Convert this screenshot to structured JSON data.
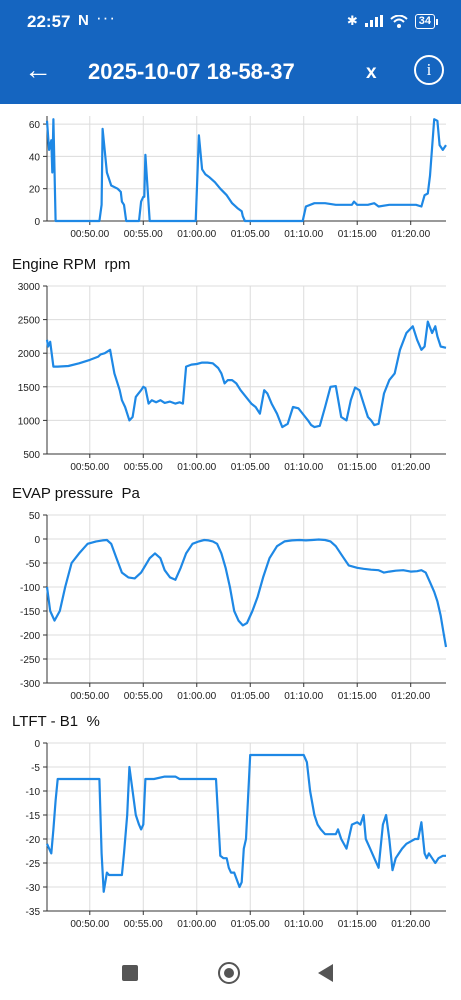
{
  "status_bar": {
    "time": "22:57",
    "notif": "N",
    "dots": "···",
    "battery": "34"
  },
  "app_bar": {
    "back_icon": "arrow-left-icon",
    "title": "2025-10-07 18-58-37",
    "close_label": "x",
    "info_label": "i"
  },
  "x_tick_labels": [
    "00:50.00",
    "00:55.00",
    "01:00.00",
    "01:05.00",
    "01:10.00",
    "01:15.00",
    "01:20.00"
  ],
  "colors": {
    "accent": "#1565c0",
    "line": "#1e88e5"
  },
  "chart_data": [
    {
      "type": "line",
      "title": "",
      "xlabel": "",
      "ylabel": "",
      "xlim": [
        "00:46.00",
        "01:23.30"
      ],
      "ylim": [
        0,
        65
      ],
      "yticks": [
        0,
        20,
        40,
        60
      ],
      "series": [
        {
          "x": [
            "00:46.00",
            "00:46.20",
            "00:46.40",
            "00:46.50",
            "00:46.60",
            "00:46.80",
            "00:47.00",
            "00:50.90",
            "00:51.10",
            "00:51.20",
            "00:51.60",
            "00:52.00",
            "00:52.60",
            "00:52.90",
            "00:53.00",
            "00:53.20",
            "00:53.40",
            "00:54.00",
            "00:54.60",
            "00:54.80",
            "00:55.00",
            "00:55.10",
            "00:55.20",
            "00:55.60",
            "00:59.80",
            "00:59.90",
            "01:00.20",
            "01:00.50",
            "01:00.80",
            "01:01.20",
            "01:01.70",
            "01:02.20",
            "01:02.80",
            "01:03.30",
            "01:03.80",
            "01:04.20",
            "01:04.30",
            "01:04.50",
            "01:09.70",
            "01:09.90",
            "01:10.20",
            "01:11.00",
            "01:12.00",
            "01:13.00",
            "01:14.00",
            "01:14.50",
            "01:14.70",
            "01:15.00",
            "01:16.00",
            "01:16.60",
            "01:17.00",
            "01:18.00",
            "01:19.00",
            "01:20.00",
            "01:20.50",
            "01:21.00",
            "01:21.30",
            "01:21.60",
            "01:21.80",
            "01:22.20",
            "01:22.50",
            "01:22.70",
            "01:23.00",
            "01:23.30"
          ],
          "values": [
            62,
            44,
            50,
            30,
            63,
            0,
            0,
            0,
            10,
            57,
            30,
            22,
            20,
            18,
            12,
            10,
            0,
            0,
            0,
            12,
            15,
            15,
            41,
            0,
            0,
            0,
            53,
            32,
            29,
            27,
            24,
            20,
            16,
            11,
            8,
            6,
            3,
            0,
            0,
            0,
            9,
            11,
            11,
            10,
            10,
            10,
            12,
            10,
            10,
            11,
            9,
            10,
            10,
            10,
            10,
            9,
            16,
            17,
            28,
            63,
            62,
            47,
            44,
            47
          ]
        }
      ]
    },
    {
      "type": "line",
      "title": "Engine RPM  rpm",
      "xlabel": "",
      "ylabel": "rpm",
      "xlim": [
        "00:46.00",
        "01:23.30"
      ],
      "ylim": [
        500,
        3000
      ],
      "yticks": [
        500,
        1000,
        1500,
        2000,
        2500,
        3000
      ],
      "series": [
        {
          "x": [
            "00:46.00",
            "00:46.10",
            "00:46.30",
            "00:46.60",
            "00:47.00",
            "00:48.00",
            "00:49.00",
            "00:50.00",
            "00:50.80",
            "00:51.00",
            "00:51.40",
            "00:51.90",
            "00:52.30",
            "00:52.80",
            "00:53.00",
            "00:53.30",
            "00:53.70",
            "00:54.00",
            "00:54.30",
            "00:54.50",
            "00:54.80",
            "00:55.00",
            "00:55.20",
            "00:55.50",
            "00:55.80",
            "00:56.20",
            "00:56.60",
            "00:57.00",
            "00:57.50",
            "00:58.00",
            "00:58.40",
            "00:58.70",
            "00:59.00",
            "00:59.50",
            "01:00.00",
            "01:00.50",
            "01:01.00",
            "01:01.50",
            "01:02.00",
            "01:02.30",
            "01:02.60",
            "01:02.90",
            "01:03.30",
            "01:03.70",
            "01:04.10",
            "01:04.60",
            "01:05.10",
            "01:05.50",
            "01:05.90",
            "01:06.30",
            "01:06.60",
            "01:07.00",
            "01:07.50",
            "01:08.00",
            "01:08.50",
            "01:09.00",
            "01:09.50",
            "01:10.00",
            "01:10.40",
            "01:10.70",
            "01:11.00",
            "01:11.50",
            "01:12.00",
            "01:12.50",
            "01:13.00",
            "01:13.50",
            "01:14.00",
            "01:14.40",
            "01:14.80",
            "01:15.20",
            "01:15.60",
            "01:16.00",
            "01:16.30",
            "01:16.60",
            "01:17.00",
            "01:17.50",
            "01:18.00",
            "01:18.50",
            "01:19.00",
            "01:19.60",
            "01:20.20",
            "01:20.60",
            "01:21.00",
            "01:21.30",
            "01:21.60",
            "01:22.00",
            "01:22.30",
            "01:22.50",
            "01:22.80",
            "01:23.30"
          ],
          "values": [
            2200,
            2100,
            2170,
            1800,
            1800,
            1810,
            1850,
            1900,
            1950,
            1980,
            2000,
            2050,
            1700,
            1450,
            1300,
            1200,
            1000,
            1050,
            1350,
            1390,
            1450,
            1500,
            1480,
            1250,
            1300,
            1270,
            1300,
            1260,
            1280,
            1250,
            1270,
            1250,
            1800,
            1830,
            1840,
            1860,
            1860,
            1850,
            1780,
            1700,
            1550,
            1600,
            1600,
            1550,
            1450,
            1350,
            1250,
            1200,
            1100,
            1450,
            1400,
            1250,
            1100,
            900,
            950,
            1200,
            1180,
            1080,
            1000,
            930,
            900,
            920,
            1200,
            1500,
            1510,
            1050,
            1000,
            1300,
            1490,
            1450,
            1250,
            1050,
            1000,
            930,
            950,
            1400,
            1600,
            1700,
            2050,
            2300,
            2400,
            2200,
            2050,
            2100,
            2470,
            2300,
            2400,
            2250,
            2100,
            2080
          ]
        }
      ]
    },
    {
      "type": "line",
      "title": "EVAP pressure  Pa",
      "xlabel": "",
      "ylabel": "Pa",
      "xlim": [
        "00:46.00",
        "01:23.30"
      ],
      "ylim": [
        -300,
        50
      ],
      "yticks": [
        -300,
        -250,
        -200,
        -150,
        -100,
        -50,
        0,
        50
      ],
      "series": [
        {
          "x": [
            "00:46.00",
            "00:46.30",
            "00:46.70",
            "00:47.20",
            "00:47.70",
            "00:48.30",
            "00:49.00",
            "00:49.80",
            "00:50.60",
            "00:51.20",
            "00:51.60",
            "00:52.00",
            "00:52.50",
            "00:53.00",
            "00:53.60",
            "00:54.20",
            "00:54.80",
            "00:55.20",
            "00:55.60",
            "00:56.10",
            "00:56.60",
            "00:57.00",
            "00:57.50",
            "00:58.00",
            "00:58.50",
            "00:59.00",
            "00:59.60",
            "01:00.20",
            "01:00.70",
            "01:01.10",
            "01:01.50",
            "01:01.90",
            "01:02.30",
            "01:02.70",
            "01:03.10",
            "01:03.50",
            "01:03.90",
            "01:04.30",
            "01:04.70",
            "01:05.20",
            "01:05.70",
            "01:06.20",
            "01:06.80",
            "01:07.50",
            "01:08.20",
            "01:08.90",
            "01:09.60",
            "01:10.20",
            "01:10.80",
            "01:11.40",
            "01:12.00",
            "01:12.50",
            "01:13.00",
            "01:13.60",
            "01:14.20",
            "01:15.00",
            "01:15.60",
            "01:16.30",
            "01:17.00",
            "01:17.50",
            "01:18.00",
            "01:18.60",
            "01:19.30",
            "01:20.00",
            "01:20.60",
            "01:21.00",
            "01:21.40",
            "01:21.80",
            "01:22.20",
            "01:22.50",
            "01:22.80",
            "01:23.10",
            "01:23.30"
          ],
          "values": [
            -100,
            -150,
            -170,
            -150,
            -100,
            -50,
            -30,
            -10,
            -5,
            -3,
            -2,
            -10,
            -40,
            -70,
            -80,
            -82,
            -70,
            -55,
            -40,
            -30,
            -40,
            -65,
            -80,
            -85,
            -60,
            -30,
            -10,
            -5,
            -2,
            -3,
            -5,
            -10,
            -30,
            -60,
            -100,
            -150,
            -170,
            -180,
            -175,
            -150,
            -120,
            -80,
            -40,
            -15,
            -5,
            -3,
            -2,
            -3,
            -2,
            -1,
            -2,
            -5,
            -15,
            -35,
            -55,
            -60,
            -62,
            -64,
            -65,
            -70,
            -68,
            -66,
            -65,
            -68,
            -67,
            -65,
            -70,
            -90,
            -110,
            -130,
            -160,
            -200,
            -225
          ]
        }
      ]
    },
    {
      "type": "line",
      "title": "LTFT - B1  %",
      "xlabel": "",
      "ylabel": "%",
      "xlim": [
        "00:46.00",
        "01:23.30"
      ],
      "ylim": [
        -35,
        0
      ],
      "yticks": [
        -35,
        -30,
        -25,
        -20,
        -15,
        -10,
        -5,
        0
      ],
      "series": [
        {
          "x": [
            "00:46.00",
            "00:46.20",
            "00:46.40",
            "00:46.60",
            "00:46.80",
            "00:47.00",
            "00:47.30",
            "00:48.00",
            "00:49.00",
            "00:50.00",
            "00:50.90",
            "00:51.10",
            "00:51.30",
            "00:51.60",
            "00:51.80",
            "00:52.00",
            "00:53.00",
            "00:53.20",
            "00:53.50",
            "00:53.70",
            "00:54.00",
            "00:54.30",
            "00:54.60",
            "00:54.80",
            "00:55.00",
            "00:55.20",
            "00:55.60",
            "00:56.00",
            "00:57.00",
            "00:58.00",
            "00:58.40",
            "00:58.60",
            "00:59.00",
            "00:59.40",
            "00:59.80",
            "01:00.20",
            "01:00.60",
            "01:01.00",
            "01:01.40",
            "01:01.80",
            "01:02.20",
            "01:02.50",
            "01:02.80",
            "01:03.00",
            "01:03.20",
            "01:03.50",
            "01:04.00",
            "01:04.20",
            "01:04.40",
            "01:04.60",
            "01:05.00",
            "01:06.00",
            "01:07.00",
            "01:08.00",
            "01:09.00",
            "01:10.00",
            "01:10.30",
            "01:10.60",
            "01:11.00",
            "01:11.30",
            "01:11.60",
            "01:12.00",
            "01:12.60",
            "01:13.00",
            "01:13.20",
            "01:13.50",
            "01:14.00",
            "01:14.50",
            "01:15.00",
            "01:15.30",
            "01:15.60",
            "01:15.80",
            "01:16.20",
            "01:16.60",
            "01:17.00",
            "01:17.40",
            "01:17.70",
            "01:18.00",
            "01:18.30",
            "01:18.60",
            "01:18.90",
            "01:19.20",
            "01:19.60",
            "01:20.00",
            "01:20.40",
            "01:20.70",
            "01:21.00",
            "01:21.30",
            "01:21.50",
            "01:21.70",
            "01:22.00",
            "01:22.30",
            "01:22.60",
            "01:23.00",
            "01:23.30"
          ],
          "values": [
            -21,
            -22,
            -23,
            -18,
            -12,
            -7.5,
            -7.5,
            -7.5,
            -7.5,
            -7.5,
            -7.5,
            -23,
            -31,
            -27,
            -27.5,
            -27.5,
            -27.5,
            -23,
            -15,
            -5,
            -10,
            -15,
            -17,
            -18,
            -17,
            -7.5,
            -7.5,
            -7.5,
            -7,
            -7,
            -7.5,
            -7.5,
            -7.5,
            -7.5,
            -7.5,
            -7.5,
            -7.5,
            -7.5,
            -7.5,
            -7.5,
            -23.5,
            -24,
            -24,
            -26,
            -27,
            -27,
            -30,
            -29,
            -22,
            -20,
            -2.5,
            -2.5,
            -2.5,
            -2.5,
            -2.5,
            -2.5,
            -4,
            -10,
            -15,
            -17,
            -18,
            -19,
            -19,
            -19,
            -18,
            -20,
            -22,
            -17,
            -16.5,
            -17,
            -15,
            -20,
            -22,
            -24,
            -26,
            -17,
            -15,
            -20,
            -26.5,
            -24,
            -23,
            -22,
            -21,
            -20.5,
            -20,
            -20,
            -16.5,
            -23,
            -24,
            -23,
            -24,
            -25,
            -24,
            -23.5,
            -23.5
          ]
        }
      ]
    }
  ]
}
